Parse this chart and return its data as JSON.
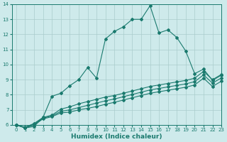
{
  "xlabel": "Humidex (Indice chaleur)",
  "background_color": "#ceeaeb",
  "grid_color": "#aacccc",
  "line_color": "#1a7a6e",
  "xlim": [
    -0.5,
    23
  ],
  "ylim": [
    6,
    14
  ],
  "xticks": [
    0,
    1,
    2,
    3,
    4,
    5,
    6,
    7,
    8,
    9,
    10,
    11,
    12,
    13,
    14,
    15,
    16,
    17,
    18,
    19,
    20,
    21,
    22,
    23
  ],
  "yticks": [
    6,
    7,
    8,
    9,
    10,
    11,
    12,
    13,
    14
  ],
  "series": [
    {
      "x": [
        0,
        1,
        2,
        3,
        4,
        5,
        6,
        7,
        8,
        9,
        10,
        11,
        12,
        13,
        14,
        15,
        16,
        17,
        18,
        19,
        20,
        21,
        22,
        23
      ],
      "y": [
        6.0,
        5.8,
        5.9,
        6.5,
        7.9,
        8.1,
        8.6,
        9.0,
        9.8,
        9.1,
        11.7,
        12.2,
        12.5,
        13.0,
        13.0,
        13.9,
        12.1,
        12.3,
        11.8,
        10.9,
        9.4,
        9.7,
        8.95,
        9.3
      ]
    },
    {
      "x": [
        0,
        1,
        2,
        3,
        4,
        5,
        6,
        7,
        8,
        9,
        10,
        11,
        12,
        13,
        14,
        15,
        16,
        17,
        18,
        19,
        20,
        21,
        22,
        23
      ],
      "y": [
        6.0,
        5.85,
        6.1,
        6.5,
        6.65,
        7.05,
        7.2,
        7.4,
        7.55,
        7.7,
        7.85,
        7.95,
        8.1,
        8.25,
        8.4,
        8.55,
        8.65,
        8.75,
        8.85,
        8.95,
        9.1,
        9.55,
        9.0,
        9.35
      ]
    },
    {
      "x": [
        0,
        1,
        2,
        3,
        4,
        5,
        6,
        7,
        8,
        9,
        10,
        11,
        12,
        13,
        14,
        15,
        16,
        17,
        18,
        19,
        20,
        21,
        22,
        23
      ],
      "y": [
        6.0,
        5.82,
        6.05,
        6.45,
        6.6,
        6.9,
        7.0,
        7.15,
        7.3,
        7.45,
        7.6,
        7.72,
        7.87,
        8.02,
        8.17,
        8.32,
        8.42,
        8.52,
        8.62,
        8.72,
        8.87,
        9.32,
        8.77,
        9.12
      ]
    },
    {
      "x": [
        0,
        1,
        2,
        3,
        4,
        5,
        6,
        7,
        8,
        9,
        10,
        11,
        12,
        13,
        14,
        15,
        16,
        17,
        18,
        19,
        20,
        21,
        22,
        23
      ],
      "y": [
        6.0,
        5.8,
        6.0,
        6.4,
        6.55,
        6.8,
        6.85,
        7.0,
        7.1,
        7.22,
        7.37,
        7.5,
        7.65,
        7.8,
        7.95,
        8.1,
        8.2,
        8.3,
        8.4,
        8.5,
        8.65,
        9.1,
        8.55,
        8.9
      ]
    }
  ],
  "marker": "D",
  "markersize": 2.0,
  "linewidth": 0.8,
  "tick_fontsize": 5.0,
  "xlabel_fontsize": 6.5,
  "tick_color": "#1a7a6e",
  "axis_color": "#1a7a6e"
}
